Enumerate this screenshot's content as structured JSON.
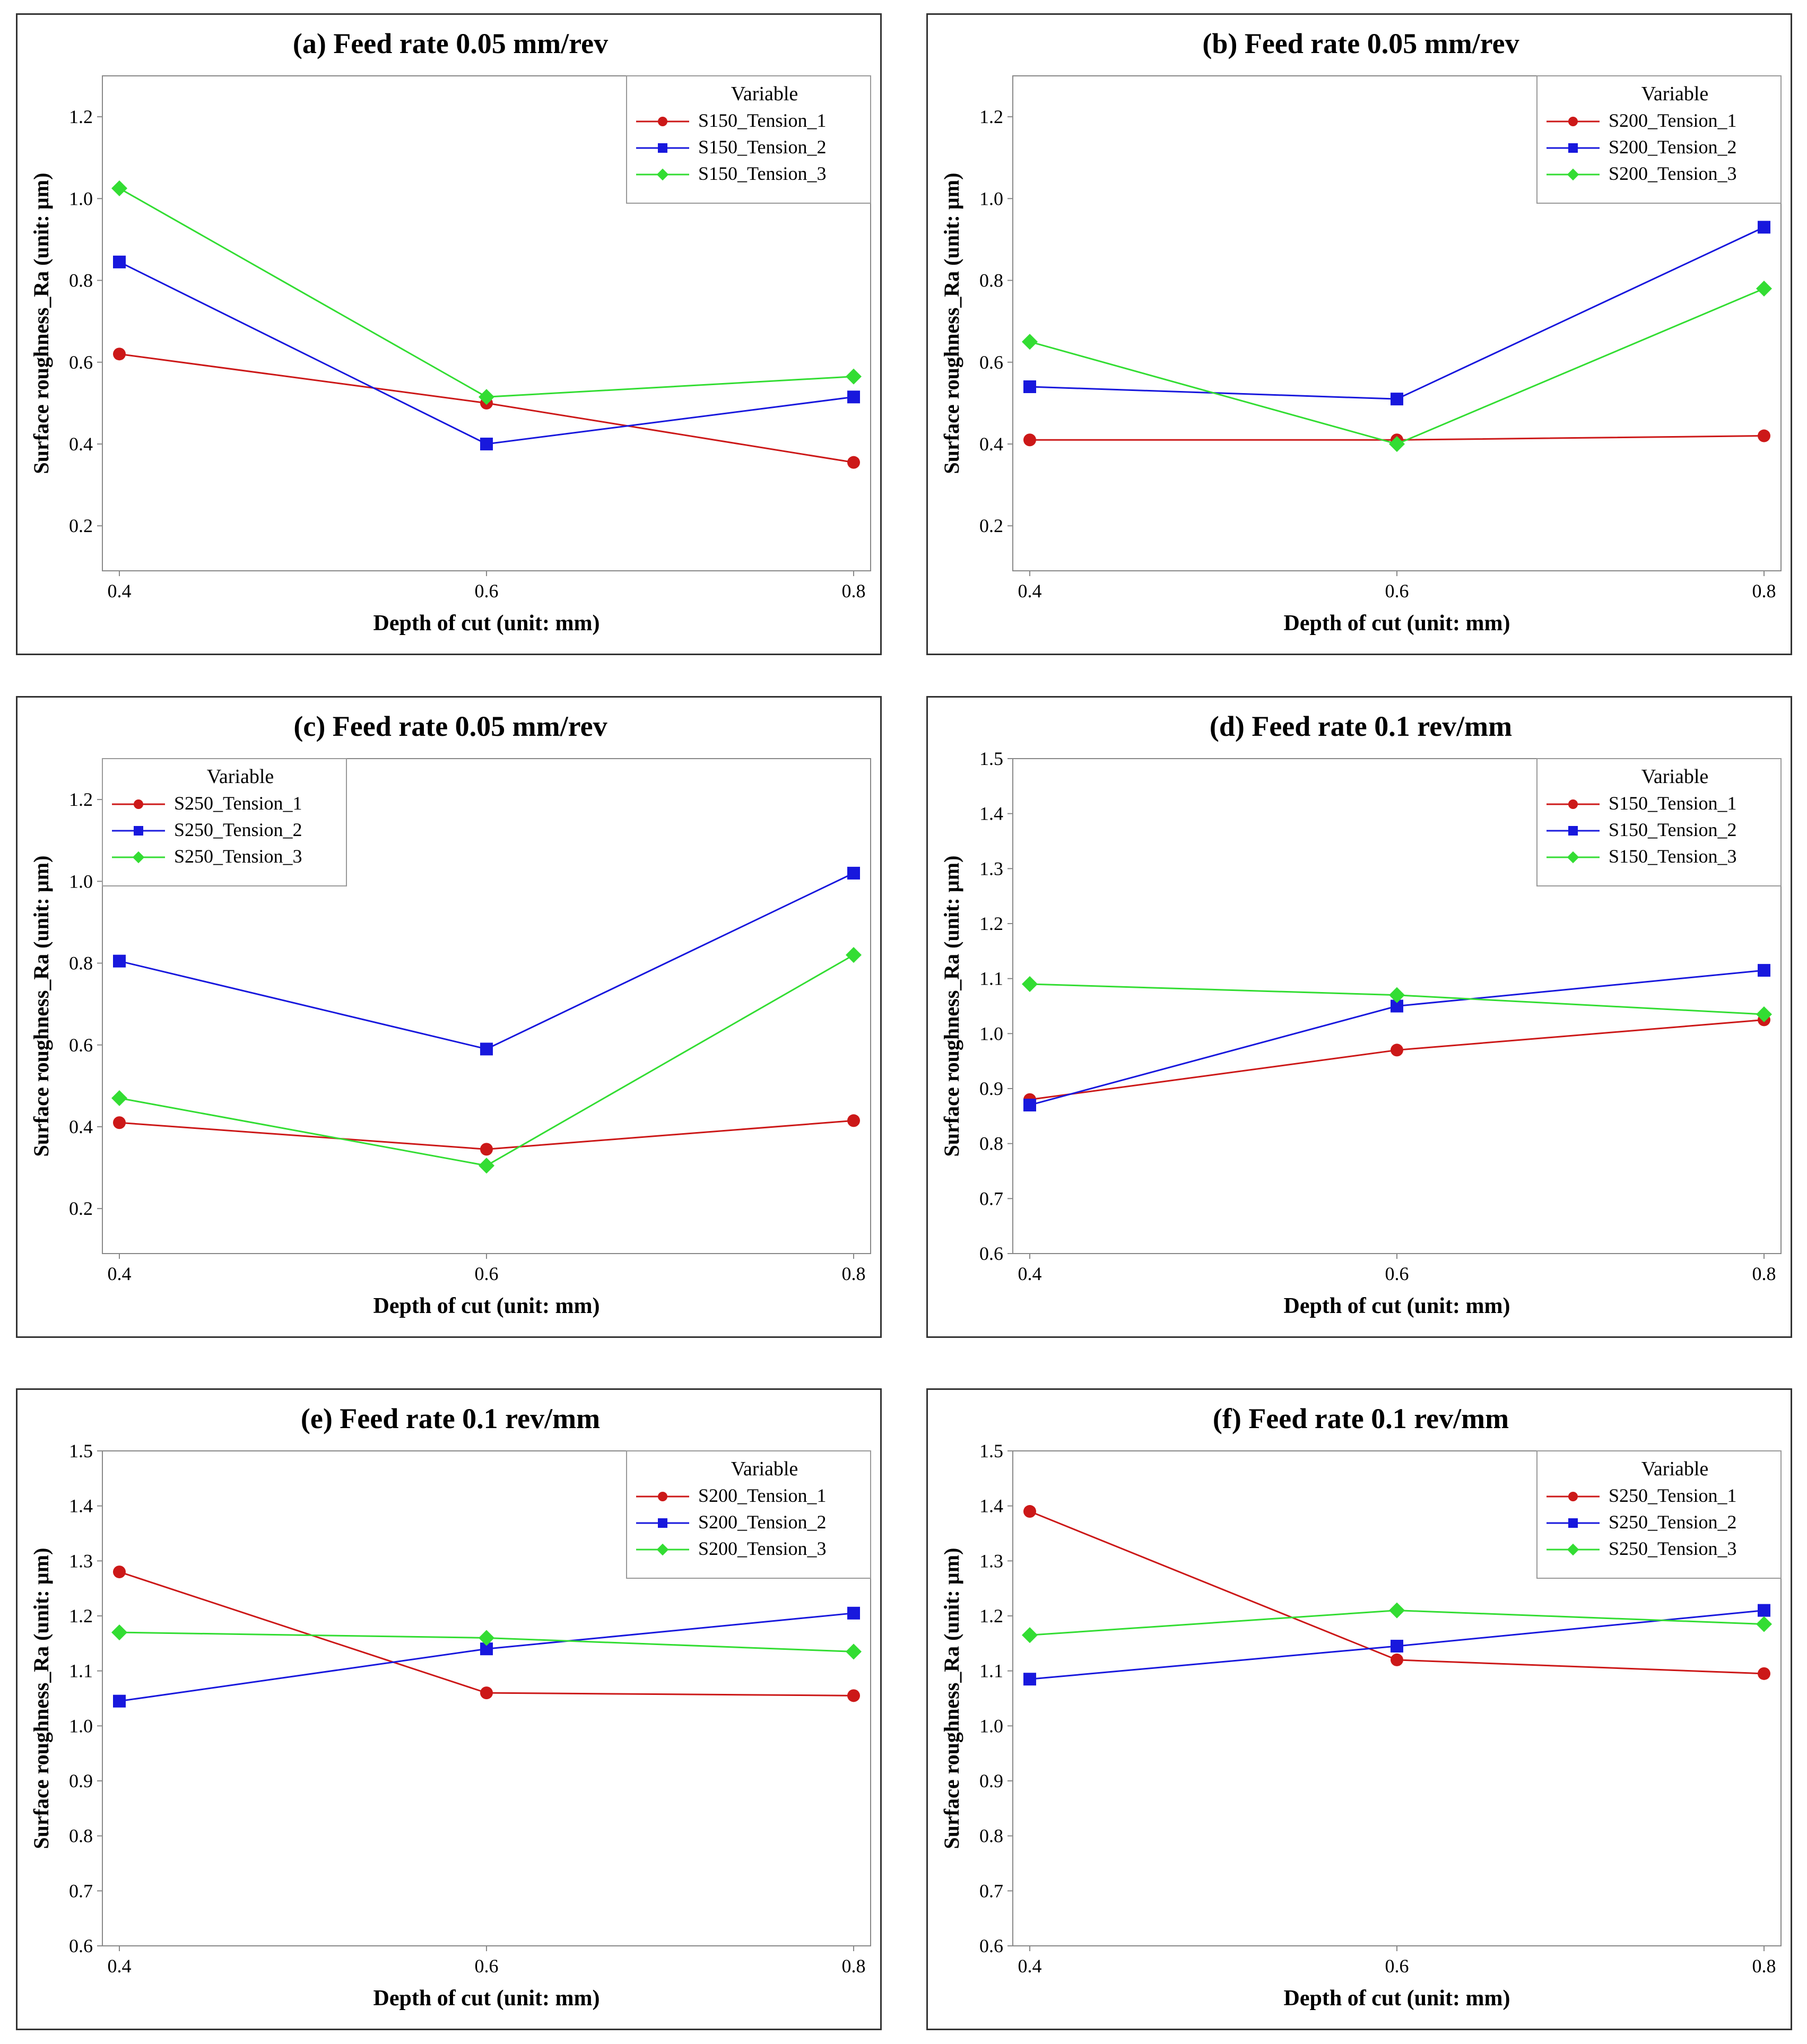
{
  "series_style": {
    "colors": [
      "#cc1818",
      "#1818dd",
      "#33dd33"
    ],
    "markers": [
      "circle",
      "square",
      "diamond"
    ]
  },
  "chart_data": [
    {
      "type": "line",
      "title": "(a) Feed rate 0.05 mm/rev",
      "xlabel": "Depth of cut (unit: mm)",
      "ylabel": "Surface roughness_Ra (unit: µm)",
      "x": [
        0.4,
        0.6,
        0.8
      ],
      "x_tick_labels": [
        "0.4",
        "0.6",
        "0.8"
      ],
      "ylim": [
        0.09,
        1.3
      ],
      "y_ticks": [
        0.2,
        0.4,
        0.6,
        0.8,
        1.0,
        1.2
      ],
      "y_tick_labels": [
        "0.2",
        "0.4",
        "0.6",
        "0.8",
        "1.0",
        "1.2"
      ],
      "legend_title": "Variable",
      "legend_position": "top-right",
      "series": [
        {
          "name": "S150_Tension_1",
          "values": [
            0.62,
            0.5,
            0.355
          ]
        },
        {
          "name": "S150_Tension_2",
          "values": [
            0.845,
            0.4,
            0.515
          ]
        },
        {
          "name": "S150_Tension_3",
          "values": [
            1.025,
            0.515,
            0.565
          ]
        }
      ]
    },
    {
      "type": "line",
      "title": "(b) Feed rate 0.05 mm/rev",
      "xlabel": "Depth of cut (unit: mm)",
      "ylabel": "Surface roughness_Ra (unit: µm)",
      "x": [
        0.4,
        0.6,
        0.8
      ],
      "x_tick_labels": [
        "0.4",
        "0.6",
        "0.8"
      ],
      "ylim": [
        0.09,
        1.3
      ],
      "y_ticks": [
        0.2,
        0.4,
        0.6,
        0.8,
        1.0,
        1.2
      ],
      "y_tick_labels": [
        "0.2",
        "0.4",
        "0.6",
        "0.8",
        "1.0",
        "1.2"
      ],
      "legend_title": "Variable",
      "legend_position": "top-right",
      "series": [
        {
          "name": "S200_Tension_1",
          "values": [
            0.41,
            0.41,
            0.42
          ]
        },
        {
          "name": "S200_Tension_2",
          "values": [
            0.54,
            0.51,
            0.93
          ]
        },
        {
          "name": "S200_Tension_3",
          "values": [
            0.65,
            0.4,
            0.78
          ]
        }
      ]
    },
    {
      "type": "line",
      "title": "(c) Feed rate 0.05 mm/rev",
      "xlabel": "Depth of cut (unit: mm)",
      "ylabel": "Surface roughness_Ra (unit: µm)",
      "x": [
        0.4,
        0.6,
        0.8
      ],
      "x_tick_labels": [
        "0.4",
        "0.6",
        "0.8"
      ],
      "ylim": [
        0.09,
        1.3
      ],
      "y_ticks": [
        0.2,
        0.4,
        0.6,
        0.8,
        1.0,
        1.2
      ],
      "y_tick_labels": [
        "0.2",
        "0.4",
        "0.6",
        "0.8",
        "1.0",
        "1.2"
      ],
      "legend_title": "Variable",
      "legend_position": "top-left",
      "series": [
        {
          "name": "S250_Tension_1",
          "values": [
            0.41,
            0.345,
            0.415
          ]
        },
        {
          "name": "S250_Tension_2",
          "values": [
            0.805,
            0.59,
            1.02
          ]
        },
        {
          "name": "S250_Tension_3",
          "values": [
            0.47,
            0.305,
            0.82
          ]
        }
      ]
    },
    {
      "type": "line",
      "title": "(d) Feed rate 0.1 rev/mm",
      "xlabel": "Depth of cut (unit: mm)",
      "ylabel": "Surface roughness_Ra (unit: µm)",
      "x": [
        0.4,
        0.6,
        0.8
      ],
      "x_tick_labels": [
        "0.4",
        "0.6",
        "0.8"
      ],
      "ylim": [
        0.6,
        1.5
      ],
      "y_ticks": [
        0.6,
        0.7,
        0.8,
        0.9,
        1.0,
        1.1,
        1.2,
        1.3,
        1.4,
        1.5
      ],
      "y_tick_labels": [
        "0.6",
        "0.7",
        "0.8",
        "0.9",
        "1.0",
        "1.1",
        "1.2",
        "1.3",
        "1.4",
        "1.5"
      ],
      "legend_title": "Variable",
      "legend_position": "top-right",
      "series": [
        {
          "name": "S150_Tension_1",
          "values": [
            0.88,
            0.97,
            1.025
          ]
        },
        {
          "name": "S150_Tension_2",
          "values": [
            0.87,
            1.05,
            1.115
          ]
        },
        {
          "name": "S150_Tension_3",
          "values": [
            1.09,
            1.07,
            1.035
          ]
        }
      ]
    },
    {
      "type": "line",
      "title": "(e) Feed rate 0.1 rev/mm",
      "xlabel": "Depth of cut (unit: mm)",
      "ylabel": "Surface roughness_Ra (unit: µm)",
      "x": [
        0.4,
        0.6,
        0.8
      ],
      "x_tick_labels": [
        "0.4",
        "0.6",
        "0.8"
      ],
      "ylim": [
        0.6,
        1.5
      ],
      "y_ticks": [
        0.6,
        0.7,
        0.8,
        0.9,
        1.0,
        1.1,
        1.2,
        1.3,
        1.4,
        1.5
      ],
      "y_tick_labels": [
        "0.6",
        "0.7",
        "0.8",
        "0.9",
        "1.0",
        "1.1",
        "1.2",
        "1.3",
        "1.4",
        "1.5"
      ],
      "legend_title": "Variable",
      "legend_position": "top-right",
      "series": [
        {
          "name": "S200_Tension_1",
          "values": [
            1.28,
            1.06,
            1.055
          ]
        },
        {
          "name": "S200_Tension_2",
          "values": [
            1.045,
            1.14,
            1.205
          ]
        },
        {
          "name": "S200_Tension_3",
          "values": [
            1.17,
            1.16,
            1.135
          ]
        }
      ]
    },
    {
      "type": "line",
      "title": "(f) Feed rate 0.1 rev/mm",
      "xlabel": "Depth of cut (unit: mm)",
      "ylabel": "Surface roughness_Ra (unit: µm)",
      "x": [
        0.4,
        0.6,
        0.8
      ],
      "x_tick_labels": [
        "0.4",
        "0.6",
        "0.8"
      ],
      "ylim": [
        0.6,
        1.5
      ],
      "y_ticks": [
        0.6,
        0.7,
        0.8,
        0.9,
        1.0,
        1.1,
        1.2,
        1.3,
        1.4,
        1.5
      ],
      "y_tick_labels": [
        "0.6",
        "0.7",
        "0.8",
        "0.9",
        "1.0",
        "1.1",
        "1.2",
        "1.3",
        "1.4",
        "1.5"
      ],
      "legend_title": "Variable",
      "legend_position": "top-right",
      "series": [
        {
          "name": "S250_Tension_1",
          "values": [
            1.39,
            1.12,
            1.095
          ]
        },
        {
          "name": "S250_Tension_2",
          "values": [
            1.085,
            1.145,
            1.21
          ]
        },
        {
          "name": "S250_Tension_3",
          "values": [
            1.165,
            1.21,
            1.185
          ]
        }
      ]
    }
  ]
}
